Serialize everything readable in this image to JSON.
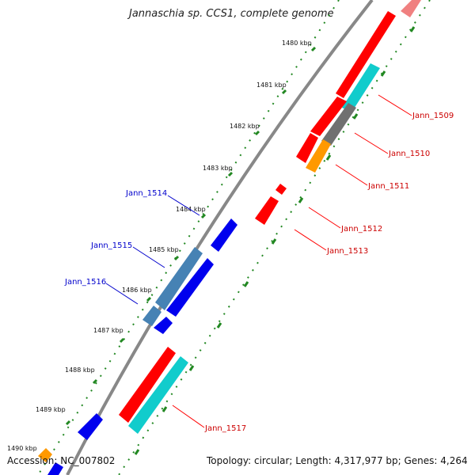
{
  "title": "Jannaschia sp. CCS1, complete genome",
  "footer": {
    "accession": "Accession: NC_007802",
    "summary": "Topology: circular; Length: 4,317,977 bp; Genes: 4,264"
  },
  "ruler": {
    "ticks": [
      "1480 kbp",
      "1481 kbp",
      "1482 kbp",
      "1483 kbp",
      "1484 kbp",
      "1485 kbp",
      "1486 kbp",
      "1487 kbp",
      "1488 kbp",
      "1489 kbp",
      "1490 kbp"
    ]
  },
  "gene_labels": {
    "forward": [
      "Jann_1509",
      "Jann_1510",
      "Jann_1511",
      "Jann_1512",
      "Jann_1513",
      "Jann_1517"
    ],
    "reverse": [
      "Jann_1514",
      "Jann_1515",
      "Jann_1516"
    ]
  },
  "colors": {
    "backbone": "#888888",
    "red_feature": "#ff0000",
    "cyan_feature": "#11cccc",
    "gray_feature": "#707070",
    "orange_feature": "#ff9900",
    "pink_feature": "#f08080",
    "blue_feature": "#0000ee",
    "steel_feature": "#4682b4",
    "tick_green": "#228822",
    "label_red": "#cc0000",
    "label_blue": "#0000cc"
  }
}
